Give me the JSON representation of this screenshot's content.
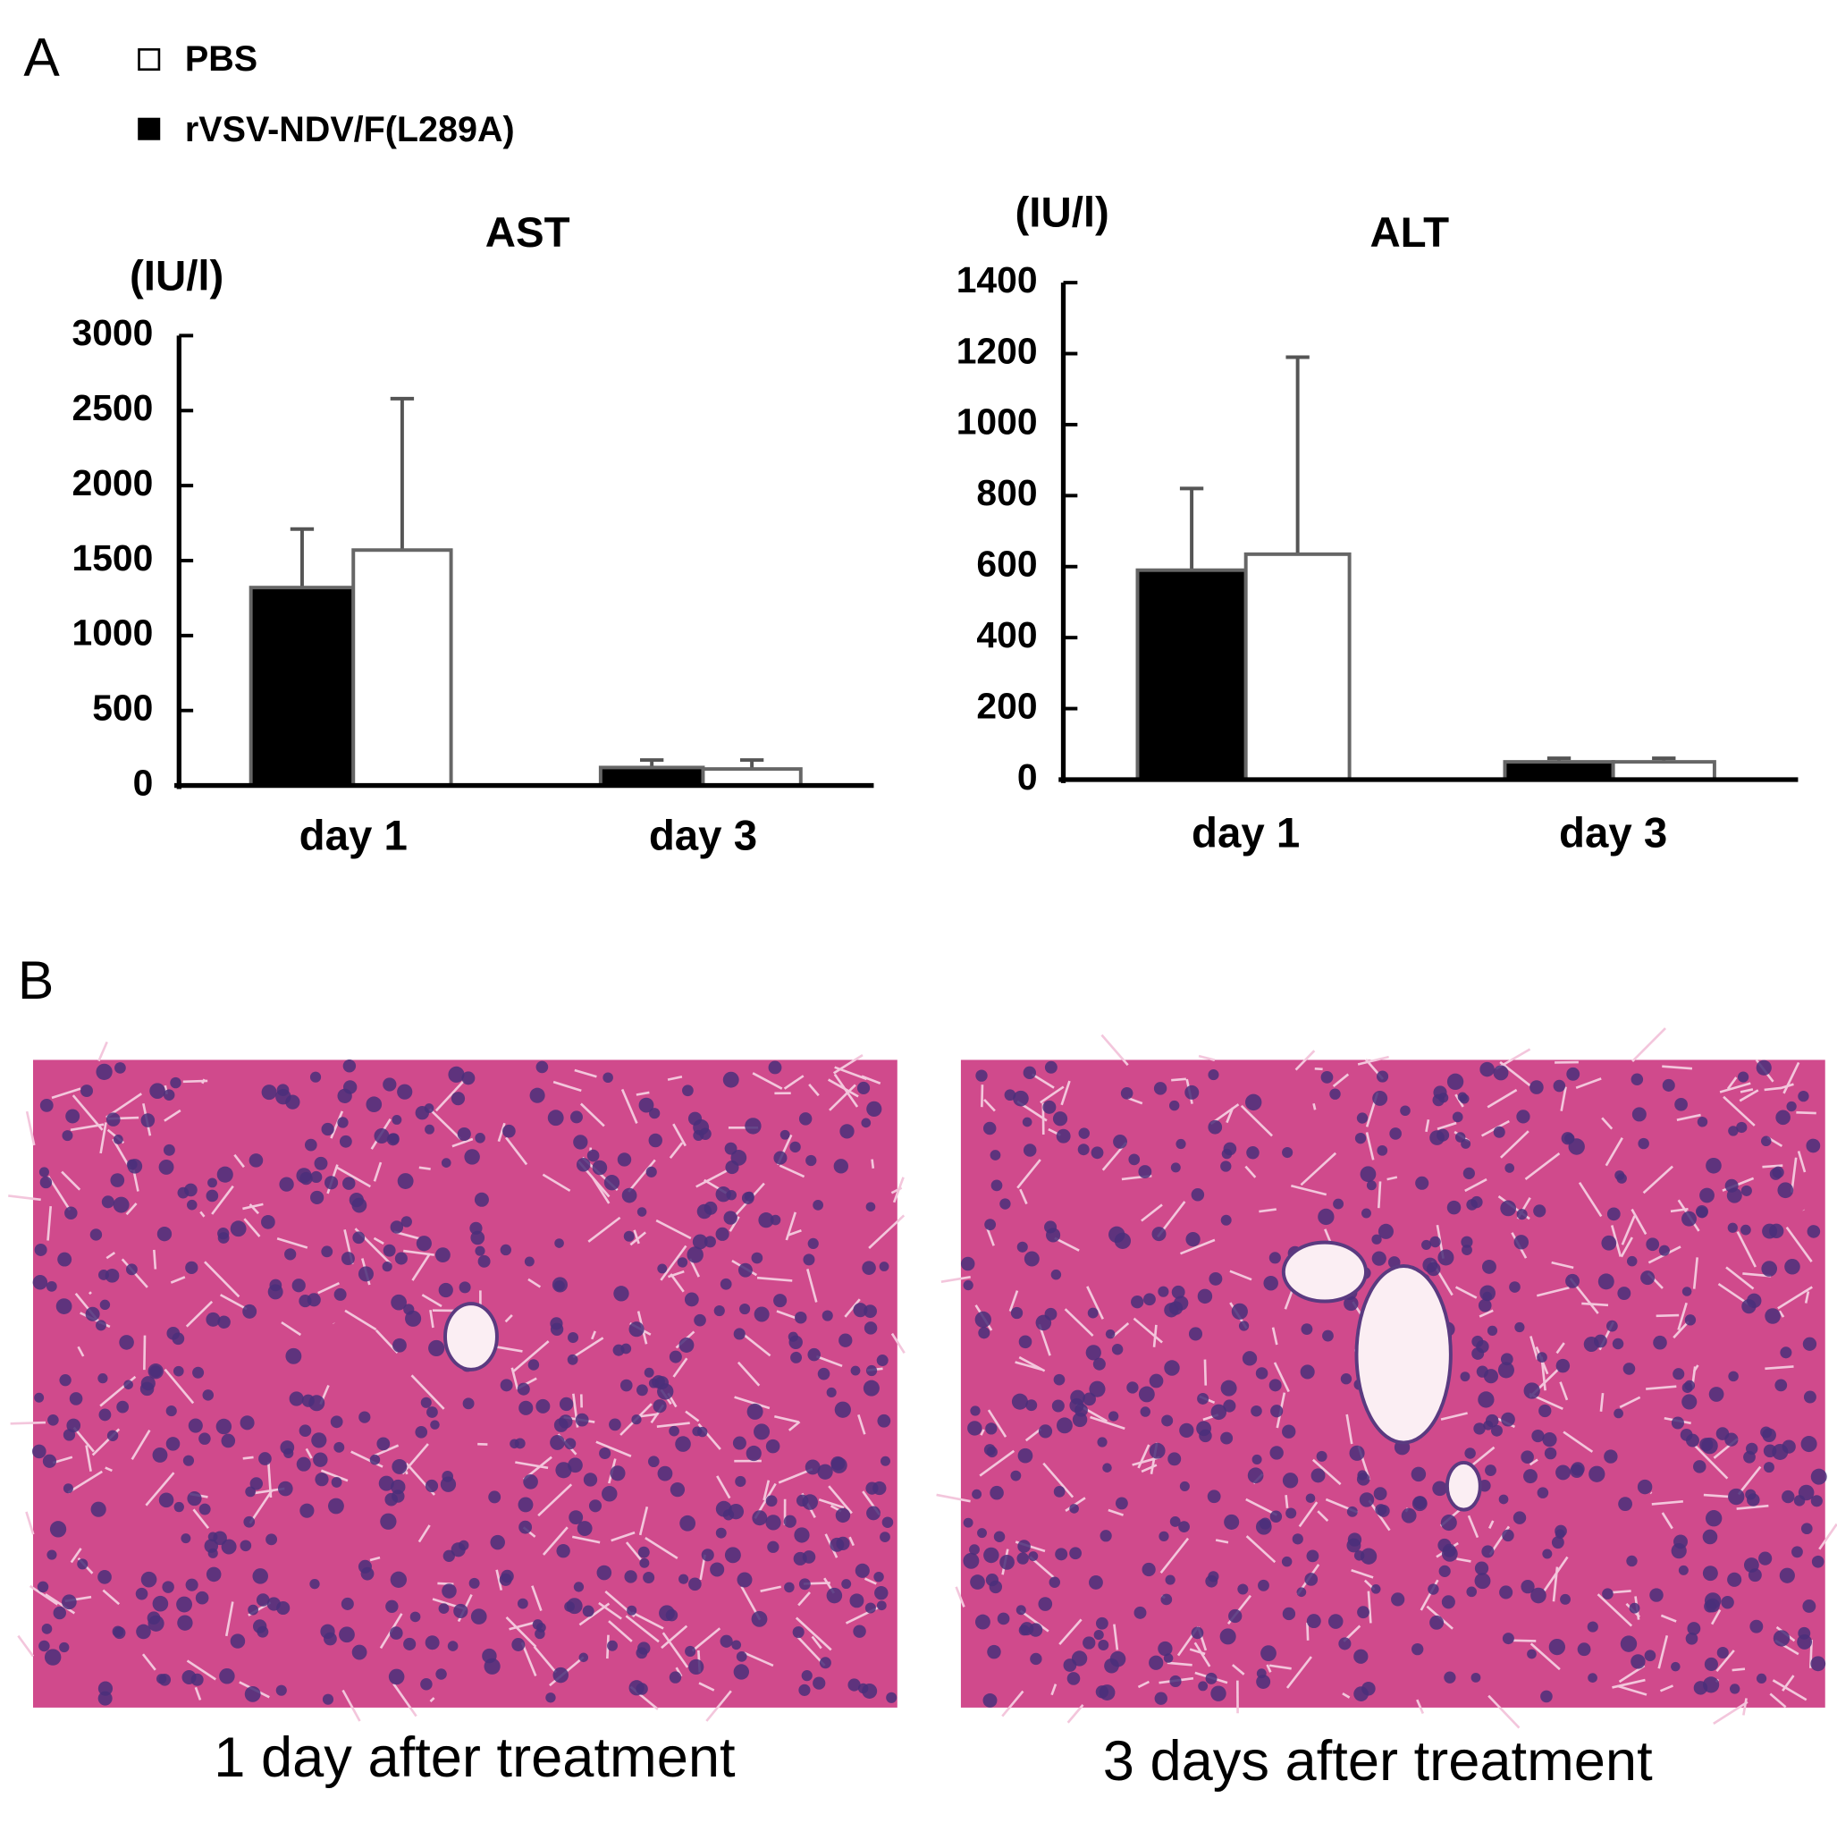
{
  "panel_labels": [
    "A",
    "B"
  ],
  "image_captions": [
    "1 day after treatment",
    "3 days after treatment"
  ],
  "chart_data": [
    {
      "type": "bar",
      "title": "AST",
      "y_label": "(IU/l)",
      "categories": [
        "day 1",
        "day 3"
      ],
      "series": [
        {
          "name": "rVSV-NDV/F(L289A)",
          "color": "#000000",
          "values": [
            1320,
            120
          ],
          "errors": [
            390,
            50
          ]
        },
        {
          "name": "PBS",
          "color": "#ffffff",
          "values": [
            1570,
            110
          ],
          "errors": [
            1010,
            60
          ]
        }
      ],
      "ylim": [
        0,
        3000
      ],
      "yticks": [
        0,
        500,
        1000,
        1500,
        2000,
        2500,
        3000
      ],
      "grid": false
    },
    {
      "type": "bar",
      "title": "ALT",
      "y_label": "(IU/l)",
      "categories": [
        "day 1",
        "day 3"
      ],
      "series": [
        {
          "color": "#000000",
          "values": [
            590,
            50
          ],
          "errors": [
            230,
            10
          ]
        },
        {
          "color": "#ffffff",
          "values": [
            635,
            50
          ],
          "errors": [
            555,
            10
          ]
        }
      ],
      "ylim": [
        0,
        1400
      ],
      "yticks": [
        0,
        200,
        400,
        600,
        800,
        1000,
        1200,
        1400
      ],
      "grid": false
    }
  ]
}
